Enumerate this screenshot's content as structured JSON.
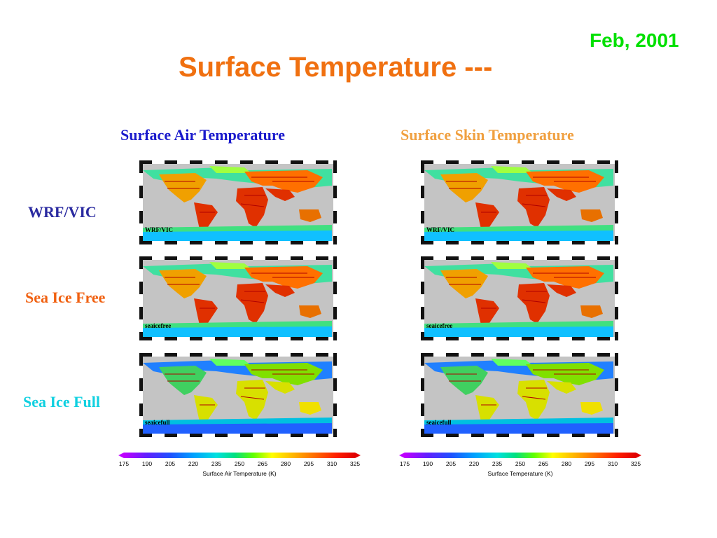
{
  "date": "Feb, 2001",
  "title": "Surface Temperature ---",
  "columns": {
    "left": "Surface Air Temperature",
    "right": "Surface Skin Temperature"
  },
  "rows": [
    {
      "label": "WRF/VIC",
      "map_label": "WRF/VIC",
      "color": "#2a2aa0"
    },
    {
      "label": "Sea Ice Free",
      "map_label": "seaicefree",
      "color": "#f06010"
    },
    {
      "label": "Sea Ice Full",
      "map_label": "seaicefull",
      "color": "#10d0e0"
    }
  ],
  "colorbars": {
    "left": {
      "ticks": [
        "175",
        "190",
        "205",
        "220",
        "235",
        "250",
        "265",
        "280",
        "295",
        "310",
        "325"
      ],
      "label": "Surface Air Temperature (K)"
    },
    "right": {
      "ticks": [
        "175",
        "190",
        "205",
        "220",
        "235",
        "250",
        "265",
        "280",
        "295",
        "310",
        "325"
      ],
      "label": "Surface Temperature (K)"
    }
  },
  "colors": {
    "title": "#f07010",
    "date": "#00e000",
    "left_header": "#1a1acc",
    "right_header": "#f0a040"
  }
}
